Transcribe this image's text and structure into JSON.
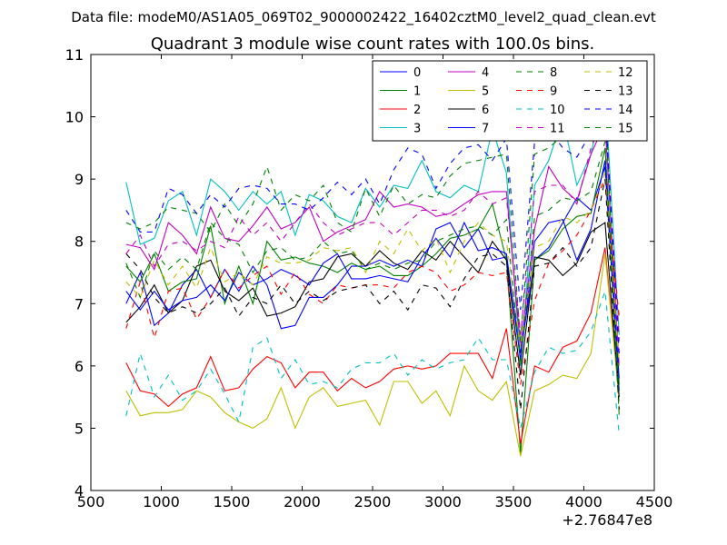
{
  "chart_data": {
    "type": "line",
    "suptitle": "Data file: modeM0/AS1A05_069T02_9000002422_16402cztM0_level2_quad_clean.evt",
    "title": "Quadrant 3 module wise count rates with 100.0s bins.",
    "xlabel": "",
    "ylabel": "",
    "x_offset_label": "+2.76847e8",
    "xlim": [
      500,
      4500
    ],
    "ylim": [
      4,
      11
    ],
    "xticks": [
      500,
      1000,
      1500,
      2000,
      2500,
      3000,
      3500,
      4000,
      4500
    ],
    "yticks": [
      4,
      5,
      6,
      7,
      8,
      9,
      10,
      11
    ],
    "x": [
      750,
      850,
      950,
      1050,
      1150,
      1250,
      1350,
      1450,
      1550,
      1650,
      1750,
      1850,
      1950,
      2050,
      2150,
      2250,
      2350,
      2450,
      2550,
      2650,
      2750,
      2850,
      2950,
      3050,
      3150,
      3250,
      3350,
      3450,
      3550,
      3650,
      3750,
      3850,
      3950,
      4050,
      4150,
      4250
    ],
    "series": [
      {
        "name": "0",
        "color": "#0000ff",
        "dashed": false,
        "values": [
          7.0,
          7.5,
          6.65,
          6.85,
          7.3,
          7.55,
          7.1,
          7.55,
          7.2,
          7.6,
          7.3,
          6.6,
          6.65,
          7.1,
          7.1,
          7.3,
          7.6,
          7.6,
          7.7,
          7.6,
          7.7,
          7.6,
          8.2,
          8.3,
          7.9,
          8.2,
          7.7,
          7.75,
          6.2,
          7.7,
          7.9,
          8.3,
          8.7,
          8.5,
          9.2,
          5.6
        ]
      },
      {
        "name": "1",
        "color": "#007f00",
        "dashed": false,
        "values": [
          7.6,
          7.35,
          7.8,
          7.2,
          7.35,
          7.4,
          8.25,
          7.0,
          7.6,
          7.0,
          8.0,
          7.7,
          7.75,
          7.65,
          7.6,
          7.5,
          7.65,
          7.55,
          7.6,
          7.45,
          7.45,
          7.6,
          7.8,
          8.05,
          8.1,
          8.2,
          8.6,
          7.7,
          4.6,
          7.7,
          7.85,
          8.2,
          8.4,
          8.45,
          9.5,
          5.7
        ]
      },
      {
        "name": "2",
        "color": "#ff0000",
        "dashed": false,
        "values": [
          6.05,
          5.6,
          5.55,
          5.35,
          5.55,
          5.65,
          6.15,
          5.6,
          5.65,
          5.95,
          6.15,
          6.05,
          5.65,
          5.9,
          5.9,
          5.6,
          5.8,
          5.65,
          5.75,
          5.95,
          6.0,
          5.95,
          6.0,
          6.2,
          6.2,
          6.2,
          5.8,
          6.6,
          4.75,
          6.0,
          5.9,
          6.3,
          6.4,
          6.85,
          7.9,
          5.5
        ]
      },
      {
        "name": "3",
        "color": "#00bfbf",
        "dashed": false,
        "values": [
          8.95,
          7.95,
          8.05,
          8.65,
          8.8,
          8.1,
          9.0,
          8.8,
          8.5,
          8.8,
          8.6,
          8.8,
          8.1,
          8.75,
          8.65,
          8.4,
          8.3,
          8.85,
          8.55,
          8.9,
          8.85,
          9.3,
          8.8,
          8.7,
          8.9,
          8.8,
          9.8,
          9.1,
          6.0,
          8.9,
          9.3,
          10.0,
          8.9,
          9.4,
          10.45,
          6.5
        ]
      },
      {
        "name": "4",
        "color": "#bf00bf",
        "dashed": false,
        "values": [
          7.95,
          7.9,
          7.55,
          8.3,
          8.1,
          7.8,
          8.55,
          8.05,
          8.0,
          8.25,
          8.55,
          8.2,
          8.3,
          8.55,
          8.0,
          8.15,
          8.25,
          8.35,
          8.8,
          8.55,
          8.6,
          8.55,
          8.4,
          8.45,
          8.6,
          8.75,
          8.8,
          8.8,
          6.3,
          8.2,
          9.2,
          8.85,
          8.65,
          9.4,
          9.9,
          6.0
        ]
      },
      {
        "name": "5",
        "color": "#bfbf00",
        "dashed": false,
        "values": [
          5.6,
          5.2,
          5.25,
          5.25,
          5.3,
          5.6,
          5.5,
          5.25,
          5.1,
          5.0,
          5.15,
          5.65,
          5.0,
          5.5,
          5.65,
          5.35,
          5.4,
          5.45,
          5.05,
          5.75,
          5.75,
          5.4,
          5.6,
          5.2,
          6.0,
          5.6,
          5.45,
          5.75,
          4.55,
          5.6,
          5.7,
          5.85,
          5.8,
          6.2,
          7.8,
          5.5
        ]
      },
      {
        "name": "6",
        "color": "#000000",
        "dashed": false,
        "values": [
          6.7,
          6.95,
          7.3,
          6.85,
          7.05,
          7.6,
          7.7,
          7.2,
          7.05,
          7.25,
          6.8,
          6.85,
          6.95,
          7.35,
          7.4,
          7.75,
          7.8,
          7.6,
          7.85,
          7.65,
          7.55,
          7.85,
          7.7,
          8.0,
          7.75,
          7.5,
          8.0,
          7.7,
          5.85,
          7.75,
          7.7,
          7.45,
          7.65,
          8.15,
          8.3,
          5.5
        ]
      },
      {
        "name": "7",
        "color": "#0000ff",
        "dashed": false,
        "values": [
          7.2,
          6.9,
          7.2,
          6.9,
          7.05,
          7.1,
          7.3,
          7.05,
          7.5,
          7.3,
          7.4,
          7.55,
          7.45,
          7.3,
          7.65,
          7.8,
          7.4,
          7.4,
          7.45,
          7.4,
          7.35,
          7.75,
          8.05,
          7.75,
          8.3,
          7.85,
          7.9,
          7.8,
          6.1,
          8.0,
          8.3,
          8.35,
          7.7,
          8.2,
          9.3,
          5.8
        ]
      },
      {
        "name": "8",
        "color": "#007f00",
        "dashed": true,
        "values": [
          8.3,
          8.2,
          8.3,
          8.55,
          8.5,
          8.45,
          8.15,
          8.6,
          8.25,
          8.6,
          9.2,
          8.5,
          8.75,
          8.65,
          8.9,
          8.3,
          8.15,
          8.85,
          8.4,
          8.9,
          8.6,
          8.75,
          8.7,
          9.05,
          9.25,
          9.3,
          9.35,
          9.4,
          6.4,
          9.4,
          9.5,
          9.7,
          9.6,
          10.2,
          10.4,
          5.3
        ]
      },
      {
        "name": "9",
        "color": "#ff0000",
        "dashed": true,
        "values": [
          6.6,
          7.35,
          6.45,
          7.2,
          7.25,
          6.75,
          7.1,
          7.55,
          7.25,
          7.45,
          7.6,
          7.15,
          7.5,
          7.15,
          7.0,
          7.3,
          7.25,
          7.3,
          7.3,
          7.25,
          7.5,
          7.6,
          7.5,
          7.2,
          7.3,
          7.5,
          7.45,
          7.5,
          5.7,
          7.05,
          7.65,
          7.85,
          8.1,
          8.5,
          9.0,
          6.8
        ]
      },
      {
        "name": "10",
        "color": "#00bfbf",
        "dashed": true,
        "values": [
          5.2,
          6.2,
          5.5,
          5.85,
          5.45,
          5.6,
          5.95,
          5.55,
          5.1,
          6.3,
          6.45,
          5.8,
          6.1,
          5.7,
          5.75,
          5.65,
          5.95,
          6.05,
          6.05,
          6.2,
          5.85,
          6.1,
          5.95,
          6.05,
          6.1,
          6.45,
          6.1,
          6.1,
          5.0,
          5.9,
          6.3,
          6.2,
          6.25,
          6.55,
          7.2,
          4.9
        ]
      },
      {
        "name": "11",
        "color": "#bf00bf",
        "dashed": true,
        "values": [
          7.8,
          8.1,
          7.6,
          7.95,
          8.0,
          7.85,
          8.0,
          7.9,
          8.4,
          8.1,
          8.3,
          8.0,
          8.3,
          8.6,
          8.3,
          8.1,
          8.2,
          8.3,
          8.3,
          8.1,
          8.3,
          8.5,
          8.5,
          8.4,
          8.5,
          8.8,
          8.6,
          8.7,
          6.5,
          8.8,
          8.9,
          8.9,
          8.6,
          9.5,
          10.1,
          6.4
        ]
      },
      {
        "name": "12",
        "color": "#bfbf00",
        "dashed": true,
        "values": [
          7.35,
          7.1,
          7.7,
          7.3,
          7.6,
          7.25,
          7.9,
          7.35,
          7.5,
          7.3,
          7.75,
          7.65,
          7.65,
          7.7,
          7.9,
          7.85,
          7.9,
          7.5,
          8.0,
          7.8,
          8.2,
          7.85,
          8.05,
          7.5,
          8.0,
          8.3,
          8.1,
          8.0,
          6.3,
          7.9,
          8.0,
          8.4,
          8.3,
          8.5,
          9.1,
          6.0
        ]
      },
      {
        "name": "13",
        "color": "#000000",
        "dashed": true,
        "values": [
          7.8,
          7.55,
          7.1,
          6.85,
          6.95,
          6.85,
          7.0,
          7.25,
          6.8,
          7.1,
          7.0,
          7.3,
          7.0,
          7.2,
          7.05,
          7.2,
          7.25,
          7.3,
          7.0,
          7.2,
          6.9,
          7.3,
          7.25,
          6.95,
          7.4,
          7.75,
          7.8,
          7.6,
          5.3,
          7.6,
          7.65,
          7.9,
          7.6,
          7.9,
          9.0,
          5.3
        ]
      },
      {
        "name": "14",
        "color": "#0000ff",
        "dashed": true,
        "values": [
          8.5,
          8.15,
          8.15,
          8.85,
          8.75,
          8.45,
          8.75,
          8.55,
          8.85,
          8.9,
          8.85,
          8.6,
          8.6,
          8.5,
          8.7,
          8.95,
          8.75,
          9.0,
          8.6,
          9.15,
          9.5,
          9.4,
          8.85,
          9.25,
          9.5,
          9.55,
          9.3,
          9.65,
          6.9,
          9.6,
          9.8,
          9.5,
          9.35,
          9.75,
          10.2,
          6.2
        ]
      },
      {
        "name": "15",
        "color": "#007f00",
        "dashed": true,
        "values": [
          7.65,
          7.1,
          7.85,
          7.55,
          7.75,
          7.55,
          8.3,
          8.05,
          7.95,
          7.5,
          7.85,
          7.9,
          7.7,
          7.75,
          8.0,
          7.8,
          7.85,
          7.55,
          7.65,
          7.55,
          7.65,
          7.7,
          8.0,
          8.1,
          8.2,
          8.25,
          8.1,
          8.35,
          6.0,
          8.4,
          8.5,
          8.7,
          8.65,
          8.8,
          9.6,
          5.2
        ]
      }
    ],
    "legend": {
      "location": "upper-right",
      "columns": 4,
      "entries": [
        "0",
        "1",
        "2",
        "3",
        "4",
        "5",
        "6",
        "7",
        "8",
        "9",
        "10",
        "11",
        "12",
        "13",
        "14",
        "15"
      ]
    },
    "grid": false
  }
}
